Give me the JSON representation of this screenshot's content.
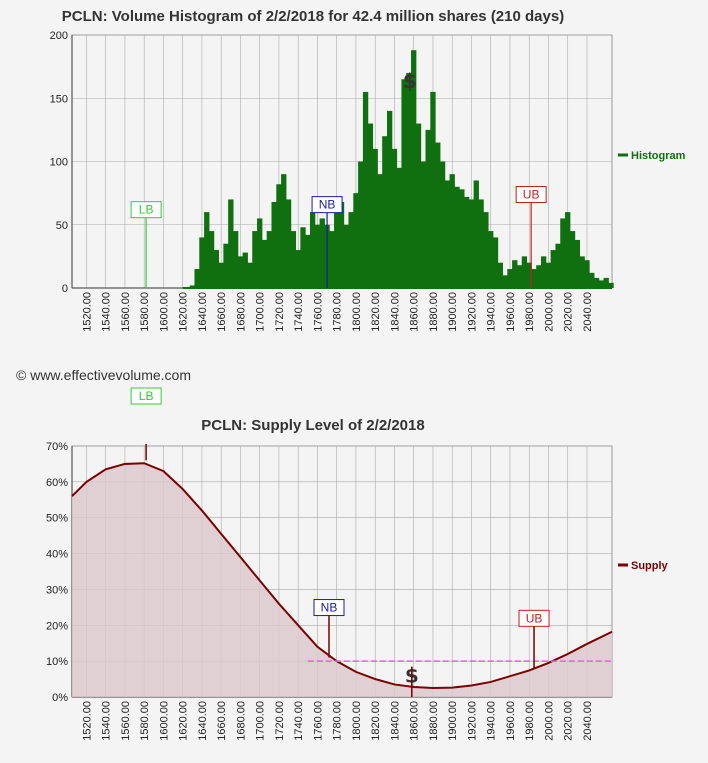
{
  "copyright": "© www.effectivevolume.com",
  "colors": {
    "histogram": "#107010",
    "supply": "#7a0000",
    "supply_fill": "#dcc8cc",
    "price_line": "#e060e0",
    "lb": "#33cc33",
    "nb": "#1a1aa0",
    "ub": "#c02020",
    "grid": "#aaaaaa"
  },
  "chart_data": [
    {
      "type": "bar",
      "title": "PCLN: Volume Histogram of 2/2/2018 for 42.4 million shares (210 days)",
      "legend": "Histogram",
      "legend_position": "right",
      "grid": true,
      "xlim": [
        1505,
        2066
      ],
      "ylim": [
        0,
        200
      ],
      "y_ticks": [
        0,
        50,
        100,
        150,
        200
      ],
      "x_ticks": [
        "1520.00",
        "1540.00",
        "1560.00",
        "1580.00",
        "1600.00",
        "1620.00",
        "1640.00",
        "1660.00",
        "1680.00",
        "1700.00",
        "1720.00",
        "1740.00",
        "1760.00",
        "1780.00",
        "1800.00",
        "1820.00",
        "1840.00",
        "1860.00",
        "1880.00",
        "1900.00",
        "1920.00",
        "1940.00",
        "1960.00",
        "1980.00",
        "2000.00",
        "2020.00",
        "2040.00"
      ],
      "x": [
        1620,
        1625,
        1630,
        1635,
        1640,
        1645,
        1650,
        1655,
        1660,
        1665,
        1670,
        1675,
        1680,
        1685,
        1690,
        1695,
        1700,
        1705,
        1710,
        1715,
        1720,
        1725,
        1730,
        1735,
        1740,
        1745,
        1750,
        1755,
        1760,
        1765,
        1770,
        1775,
        1780,
        1785,
        1790,
        1795,
        1800,
        1805,
        1810,
        1815,
        1820,
        1825,
        1830,
        1835,
        1840,
        1845,
        1850,
        1855,
        1860,
        1865,
        1870,
        1875,
        1880,
        1885,
        1890,
        1895,
        1900,
        1905,
        1910,
        1915,
        1920,
        1925,
        1930,
        1935,
        1940,
        1945,
        1950,
        1955,
        1960,
        1965,
        1970,
        1975,
        1980,
        1985,
        1990,
        1995,
        2000,
        2005,
        2010,
        2015,
        2020,
        2025,
        2030,
        2035,
        2040,
        2045,
        2050,
        2055,
        2060,
        2065
      ],
      "values": [
        0,
        0,
        2,
        15,
        40,
        60,
        45,
        30,
        20,
        35,
        70,
        45,
        25,
        28,
        20,
        45,
        55,
        38,
        45,
        68,
        82,
        90,
        70,
        45,
        30,
        48,
        42,
        60,
        50,
        55,
        50,
        45,
        60,
        68,
        50,
        60,
        75,
        100,
        155,
        130,
        110,
        90,
        120,
        140,
        110,
        95,
        165,
        170,
        188,
        130,
        100,
        125,
        155,
        115,
        100,
        85,
        90,
        80,
        78,
        72,
        70,
        85,
        70,
        60,
        45,
        40,
        20,
        10,
        15,
        22,
        18,
        25,
        20,
        15,
        18,
        25,
        20,
        30,
        35,
        55,
        60,
        45,
        38,
        25,
        22,
        12,
        8,
        6,
        8,
        4
      ],
      "markers": [
        {
          "label": "LB",
          "x": 1582,
          "value": 54
        },
        {
          "label": "NB",
          "x": 1770,
          "value": 58
        },
        {
          "label": "UB",
          "x": 1982,
          "value": 66
        },
        {
          "label": "$",
          "x": 1856,
          "value": 155
        }
      ]
    },
    {
      "type": "area",
      "title": "PCLN: Supply Level of 2/2/2018",
      "legend": "Supply",
      "legend_position": "right",
      "grid": true,
      "xlim": [
        1505,
        2066
      ],
      "ylim": [
        0,
        70
      ],
      "y_ticks": [
        "0%",
        "10%",
        "20%",
        "30%",
        "40%",
        "50%",
        "60%",
        "70%"
      ],
      "x_ticks": [
        "1520.00",
        "1540.00",
        "1560.00",
        "1580.00",
        "1600.00",
        "1620.00",
        "1640.00",
        "1660.00",
        "1680.00",
        "1700.00",
        "1720.00",
        "1740.00",
        "1760.00",
        "1780.00",
        "1800.00",
        "1820.00",
        "1840.00",
        "1860.00",
        "1880.00",
        "1900.00",
        "1920.00",
        "1940.00",
        "1960.00",
        "1980.00",
        "2000.00",
        "2020.00",
        "2040.00"
      ],
      "x": [
        1505,
        1520,
        1540,
        1560,
        1580,
        1600,
        1620,
        1640,
        1660,
        1680,
        1700,
        1720,
        1740,
        1760,
        1780,
        1800,
        1820,
        1840,
        1860,
        1880,
        1900,
        1920,
        1940,
        1960,
        1980,
        2000,
        2020,
        2040,
        2066
      ],
      "values": [
        56,
        60,
        63.5,
        65,
        65.2,
        63,
        58,
        52,
        45.5,
        39,
        32.5,
        26,
        20,
        14,
        10,
        7,
        5,
        3.5,
        2.8,
        2.5,
        2.6,
        3.2,
        4.2,
        5.8,
        7.4,
        9.5,
        12,
        14.8,
        18.2
      ],
      "price_level": 10,
      "price_level_from_x": 1750,
      "markers": [
        {
          "label": "LB",
          "x": 1582,
          "value": 66
        },
        {
          "label": "NB",
          "x": 1772,
          "value": 11
        },
        {
          "label": "UB",
          "x": 1985,
          "value": 8
        },
        {
          "label": "$",
          "x": 1858,
          "value": 2.9
        }
      ]
    }
  ]
}
